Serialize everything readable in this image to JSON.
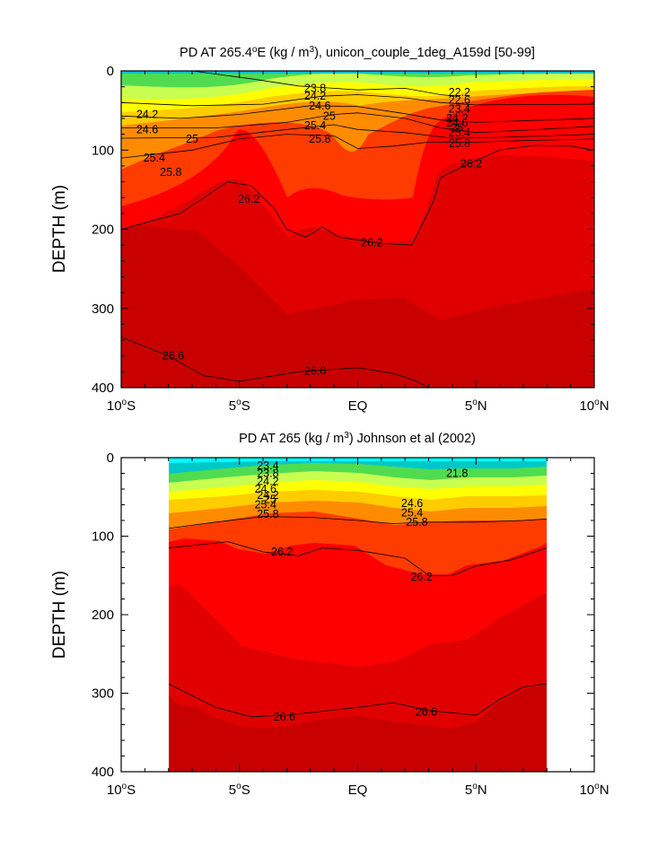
{
  "chart_data": [
    {
      "type": "contour",
      "title_parts": [
        "PD AT 265.4",
        "o",
        "E (kg / m",
        "3",
        "), unicon_couple_1deg_A159d [50-99]"
      ],
      "ylabel": "DEPTH (m)",
      "y_ticks": [
        "0",
        "100",
        "200",
        "300",
        "400"
      ],
      "x_ticks": [
        {
          "value": "10",
          "deg": "o",
          "hem": "S"
        },
        {
          "value": "5",
          "deg": "o",
          "hem": "S"
        },
        {
          "value": "EQ",
          "deg": "",
          "hem": ""
        },
        {
          "value": "5",
          "deg": "o",
          "hem": "N"
        },
        {
          "value": "10",
          "deg": "o",
          "hem": "N"
        }
      ],
      "xlim": [
        -10,
        10
      ],
      "ylim": [
        400,
        0
      ],
      "contour_interval": 0.2,
      "isopycnals": [
        {
          "level": 23.8,
          "points": [
            [
              -7,
              0
            ],
            [
              -4.5,
              10
            ],
            [
              -2.5,
              19
            ],
            [
              -1,
              22
            ],
            [
              0,
              24
            ],
            [
              2,
              22
            ],
            [
              3.5,
              30
            ],
            [
              4.2,
              32
            ]
          ]
        },
        {
          "level": 24.2,
          "points": [
            [
              -10,
              40
            ],
            [
              -7,
              44
            ],
            [
              -4,
              42
            ],
            [
              -1.5,
              32
            ],
            [
              0,
              30
            ],
            [
              2,
              34
            ],
            [
              3.5,
              40
            ],
            [
              5,
              43
            ],
            [
              10,
              42
            ]
          ]
        },
        {
          "level": 24.6,
          "points": [
            [
              -10,
              57
            ],
            [
              -7.5,
              60
            ],
            [
              -5,
              55
            ],
            [
              -2,
              44
            ],
            [
              0,
              45
            ],
            [
              2,
              54
            ],
            [
              3.5,
              62
            ],
            [
              5,
              65
            ],
            [
              10,
              60
            ]
          ]
        },
        {
          "level": 25.0,
          "points": [
            [
              -10,
              72
            ],
            [
              -6,
              72
            ],
            [
              -3,
              65
            ],
            [
              -1,
              55
            ],
            [
              0,
              53
            ],
            [
              2,
              60
            ],
            [
              3.5,
              72
            ],
            [
              5,
              78
            ],
            [
              7,
              75
            ],
            [
              10,
              70
            ]
          ]
        },
        {
          "level": 25.4,
          "points": [
            [
              -10,
              85
            ],
            [
              -6,
              84
            ],
            [
              -3,
              74
            ],
            [
              -1,
              68
            ],
            [
              0,
              74
            ],
            [
              2,
              78
            ],
            [
              4,
              85
            ],
            [
              6,
              84
            ],
            [
              10,
              80
            ]
          ]
        },
        {
          "level": 25.8,
          "points": [
            [
              -10,
              110
            ],
            [
              -7,
              100
            ],
            [
              -5,
              86
            ],
            [
              -3,
              80
            ],
            [
              -1,
              82
            ],
            [
              0,
              98
            ],
            [
              1.5,
              95
            ],
            [
              3,
              90
            ],
            [
              5,
              90
            ],
            [
              7,
              88
            ],
            [
              10,
              86
            ]
          ]
        },
        {
          "level": 26.2,
          "points": [
            [
              -10,
              200
            ],
            [
              -7.5,
              180
            ],
            [
              -5.5,
              140
            ],
            [
              -4.5,
              145
            ],
            [
              -3.5,
              175
            ],
            [
              -3,
              200
            ],
            [
              -2.2,
              210
            ],
            [
              -1.5,
              197
            ],
            [
              -0.8,
              210
            ],
            [
              1,
              218
            ],
            [
              2.3,
              220
            ],
            [
              3.2,
              165
            ],
            [
              3.5,
              135
            ],
            [
              4.5,
              120
            ],
            [
              6,
              100
            ],
            [
              7.5,
              94
            ],
            [
              9,
              95
            ],
            [
              10,
              100
            ]
          ]
        },
        {
          "level": 26.6,
          "points": [
            [
              -10,
              336
            ],
            [
              -8,
              360
            ],
            [
              -6.5,
              385
            ],
            [
              -5,
              392
            ],
            [
              -2.5,
              380
            ],
            [
              0,
              375
            ],
            [
              1.5,
              382
            ],
            [
              2.5,
              392
            ],
            [
              3,
              400
            ]
          ]
        }
      ],
      "labels": [
        {
          "text": "23.8",
          "x": -1.8,
          "y": 22
        },
        {
          "text": "24.2",
          "x": -1.8,
          "y": 32
        },
        {
          "text": "24.6",
          "x": -1.6,
          "y": 44
        },
        {
          "text": "25",
          "x": -1.2,
          "y": 57
        },
        {
          "text": "25.4",
          "x": -1.8,
          "y": 69
        },
        {
          "text": "25.8",
          "x": -1.6,
          "y": 86
        },
        {
          "text": "22.2",
          "x": 4.3,
          "y": 27
        },
        {
          "text": "22.6",
          "x": 4.3,
          "y": 37
        },
        {
          "text": "23.4",
          "x": 4.3,
          "y": 48
        },
        {
          "text": "24.2",
          "x": 4.2,
          "y": 60
        },
        {
          "text": "24.6",
          "x": 4.2,
          "y": 66
        },
        {
          "text": "25",
          "x": 4.2,
          "y": 72
        },
        {
          "text": "25.4",
          "x": 4.3,
          "y": 78
        },
        {
          "text": "25.8",
          "x": 4.3,
          "y": 92
        },
        {
          "text": "24.2",
          "x": -8.9,
          "y": 55
        },
        {
          "text": "24.6",
          "x": -8.9,
          "y": 74
        },
        {
          "text": "25",
          "x": -7.0,
          "y": 86
        },
        {
          "text": "25.4",
          "x": -8.6,
          "y": 110
        },
        {
          "text": "25.8",
          "x": -7.9,
          "y": 128
        },
        {
          "text": "26.2",
          "x": -4.6,
          "y": 162
        },
        {
          "text": "26.2",
          "x": 0.6,
          "y": 217
        },
        {
          "text": "26.2",
          "x": 4.8,
          "y": 117
        },
        {
          "text": "26.6",
          "x": -7.8,
          "y": 360
        },
        {
          "text": "26.6",
          "x": -1.8,
          "y": 379
        }
      ]
    },
    {
      "type": "contour",
      "title_parts": [
        "PD AT 265 (kg / m",
        "3",
        ") Johnson et al (2002)"
      ],
      "ylabel": "DEPTH (m)",
      "y_ticks": [
        "0",
        "100",
        "200",
        "300",
        "400"
      ],
      "x_ticks": [
        {
          "value": "10",
          "deg": "o",
          "hem": "S"
        },
        {
          "value": "5",
          "deg": "o",
          "hem": "S"
        },
        {
          "value": "EQ",
          "deg": "",
          "hem": ""
        },
        {
          "value": "5",
          "deg": "o",
          "hem": "N"
        },
        {
          "value": "10",
          "deg": "o",
          "hem": "N"
        }
      ],
      "xlim": [
        -10,
        10
      ],
      "ylim": [
        400,
        0
      ],
      "data_xrange": [
        -8,
        8
      ],
      "contour_interval": 0.2,
      "isopycnals": [
        {
          "level": 25.8,
          "points": [
            [
              -8,
              90
            ],
            [
              -6,
              82
            ],
            [
              -4,
              75
            ],
            [
              -2,
              76
            ],
            [
              0,
              80
            ],
            [
              1.5,
              84
            ],
            [
              3,
              82
            ],
            [
              5,
              82
            ],
            [
              7,
              80
            ],
            [
              8,
              78
            ]
          ]
        },
        {
          "level": 26.2,
          "points": [
            [
              -8,
              115
            ],
            [
              -7,
              112
            ],
            [
              -5.5,
              107
            ],
            [
              -4,
              120
            ],
            [
              -2.5,
              125
            ],
            [
              -1.5,
              115
            ],
            [
              0,
              118
            ],
            [
              2,
              128
            ],
            [
              3,
              150
            ],
            [
              4,
              150
            ],
            [
              5,
              138
            ],
            [
              6.5,
              130
            ],
            [
              8,
              115
            ]
          ]
        },
        {
          "level": 26.6,
          "points": [
            [
              -8,
              288
            ],
            [
              -7.2,
              300
            ],
            [
              -6,
              318
            ],
            [
              -4.5,
              330
            ],
            [
              -3,
              328
            ],
            [
              -1.5,
              323
            ],
            [
              0,
              318
            ],
            [
              1.5,
              312
            ],
            [
              3,
              322
            ],
            [
              4,
              325
            ],
            [
              5,
              328
            ],
            [
              6,
              308
            ],
            [
              7,
              292
            ],
            [
              8,
              288
            ]
          ]
        }
      ],
      "labels": [
        {
          "text": "23.4",
          "x": -3.8,
          "y": 10
        },
        {
          "text": "23.8",
          "x": -3.8,
          "y": 20
        },
        {
          "text": "24.2",
          "x": -3.8,
          "y": 30
        },
        {
          "text": "24.6",
          "x": -3.9,
          "y": 40
        },
        {
          "text": "24.2",
          "x": -3.8,
          "y": 48
        },
        {
          "text": "25",
          "x": -3.7,
          "y": 53
        },
        {
          "text": "25.4",
          "x": -3.9,
          "y": 60
        },
        {
          "text": "25.8",
          "x": -3.8,
          "y": 72
        },
        {
          "text": "26.2",
          "x": -3.2,
          "y": 120
        },
        {
          "text": "26.2",
          "x": 2.7,
          "y": 152
        },
        {
          "text": "26.6",
          "x": -3.1,
          "y": 330
        },
        {
          "text": "26.6",
          "x": 2.9,
          "y": 324
        },
        {
          "text": "25.8",
          "x": 2.5,
          "y": 82
        },
        {
          "text": "25.4",
          "x": 2.3,
          "y": 70
        },
        {
          "text": "24.6",
          "x": 2.3,
          "y": 58
        },
        {
          "text": "21.8",
          "x": 4.2,
          "y": 20
        }
      ]
    }
  ]
}
